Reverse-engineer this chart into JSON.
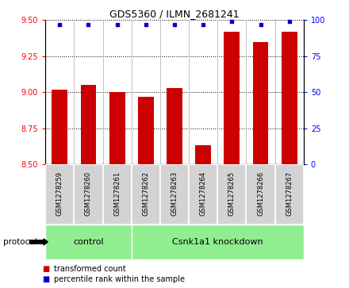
{
  "title": "GDS5360 / ILMN_2681241",
  "samples": [
    "GSM1278259",
    "GSM1278260",
    "GSM1278261",
    "GSM1278262",
    "GSM1278263",
    "GSM1278264",
    "GSM1278265",
    "GSM1278266",
    "GSM1278267"
  ],
  "transformed_counts": [
    9.02,
    9.05,
    9.0,
    8.97,
    9.03,
    8.63,
    9.42,
    9.35,
    9.42
  ],
  "percentile_ranks": [
    97,
    97,
    97,
    97,
    97,
    97,
    99,
    97,
    99
  ],
  "ylim_left": [
    8.5,
    9.5
  ],
  "ylim_right": [
    0,
    100
  ],
  "yticks_left": [
    8.5,
    8.75,
    9.0,
    9.25,
    9.5
  ],
  "yticks_right": [
    0,
    25,
    50,
    75,
    100
  ],
  "bar_color": "#cc0000",
  "dot_color": "#0000cc",
  "bar_width": 0.55,
  "n_control": 3,
  "n_knockdown": 6,
  "control_label": "control",
  "knockdown_label": "Csnk1a1 knockdown",
  "protocol_label": "protocol",
  "legend_bar_label": "transformed count",
  "legend_dot_label": "percentile rank within the sample",
  "sample_box_color": "#d3d3d3",
  "control_fill": "#90ee90",
  "knockdown_fill": "#90ee90"
}
